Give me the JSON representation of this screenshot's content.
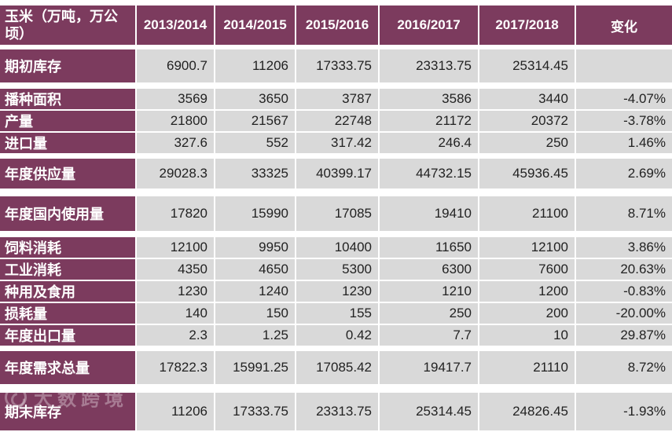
{
  "chart_data": {
    "type": "table",
    "title": "玉米（万吨，万公顷）",
    "columns": [
      "2013/2014",
      "2014/2015",
      "2015/2016",
      "2016/2017",
      "2017/2018",
      "变化"
    ],
    "rows": [
      {
        "label": "期初库存",
        "values": [
          "6900.7",
          "11206",
          "17333.75",
          "23313.75",
          "25314.45",
          ""
        ],
        "size": "large",
        "gap_after": true
      },
      {
        "label": "播种面积",
        "values": [
          "3569",
          "3650",
          "3787",
          "3586",
          "3440",
          "-4.07%"
        ],
        "size": "normal",
        "gap_after": false
      },
      {
        "label": "产量",
        "values": [
          "21800",
          "21567",
          "22748",
          "21172",
          "20372",
          "-3.78%"
        ],
        "size": "normal",
        "gap_after": false
      },
      {
        "label": "进口量",
        "values": [
          "327.6",
          "552",
          "317.42",
          "246.4",
          "250",
          "1.46%"
        ],
        "size": "normal",
        "gap_after": true
      },
      {
        "label": "年度供应量",
        "values": [
          "29028.3",
          "33325",
          "40399.17",
          "44732.15",
          "45936.45",
          "2.69%"
        ],
        "size": "supply",
        "gap_after": true
      },
      {
        "label": "年度国内使用量",
        "values": [
          "17820",
          "15990",
          "17085",
          "19410",
          "21100",
          "8.71%"
        ],
        "size": "use",
        "gap_after": true
      },
      {
        "label": "饲料消耗",
        "values": [
          "12100",
          "9950",
          "10400",
          "11650",
          "12100",
          "3.86%"
        ],
        "size": "normal",
        "gap_after": false
      },
      {
        "label": "工业消耗",
        "values": [
          "4350",
          "4650",
          "5300",
          "6300",
          "7600",
          "20.63%"
        ],
        "size": "normal",
        "gap_after": false
      },
      {
        "label": "种用及食用",
        "values": [
          "1230",
          "1240",
          "1230",
          "1210",
          "1200",
          "-0.83%"
        ],
        "size": "normal",
        "gap_after": false
      },
      {
        "label": "损耗量",
        "values": [
          "140",
          "150",
          "155",
          "250",
          "200",
          "-20.00%"
        ],
        "size": "normal",
        "gap_after": false
      },
      {
        "label": "年度出口量",
        "values": [
          "2.3",
          "1.25",
          "0.42",
          "7.7",
          "10",
          "29.87%"
        ],
        "size": "normal",
        "gap_after": true
      },
      {
        "label": "年度需求总量",
        "values": [
          "17822.3",
          "15991.25",
          "17085.42",
          "19417.7",
          "21110",
          "8.72%"
        ],
        "size": "large",
        "gap_after": true
      },
      {
        "label": "期末库存",
        "values": [
          "11206",
          "17333.75",
          "23313.75",
          "25314.45",
          "24826.45",
          "-1.93%"
        ],
        "size": "end",
        "gap_after": false
      }
    ],
    "legend_position": "none",
    "grid": "white-separators"
  },
  "watermark": {
    "text": "大数跨境",
    "logo": "ring-logo"
  },
  "colors": {
    "maroon": "#7c3b5e",
    "cell_gray": "#d9d9d9",
    "text_dark": "#222222",
    "separator": "#ffffff"
  }
}
